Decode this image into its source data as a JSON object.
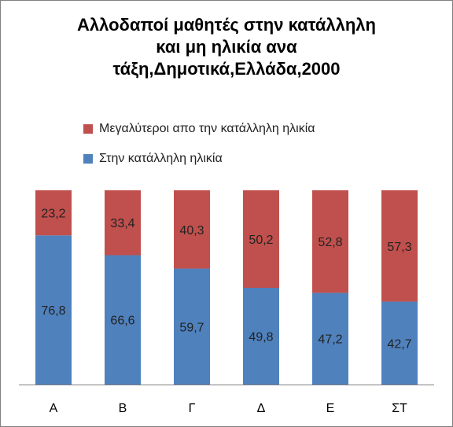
{
  "chart_data": {
    "type": "bar",
    "stacked": true,
    "title_lines": [
      "Αλλοδαποί  μαθητές στην κατάλληλη",
      "και μη ηλικία ανα",
      "τάξη,Δημοτικά,Ελλάδα,2000"
    ],
    "categories": [
      "Α",
      "Β",
      "Γ",
      "Δ",
      "Ε",
      "ΣΤ"
    ],
    "series": [
      {
        "name": "Στην κατάλληλη ηλικία",
        "color": "#4F81BD",
        "values": [
          76.8,
          66.6,
          59.7,
          49.8,
          47.2,
          42.7
        ],
        "labels": [
          "76,8",
          "66,6",
          "59,7",
          "49,8",
          "47,2",
          "42,7"
        ]
      },
      {
        "name": "Μεγαλύτεροι απο την κατάλληλη ηλικία",
        "color": "#C0504D",
        "values": [
          23.2,
          33.4,
          40.3,
          50.2,
          52.8,
          57.3
        ],
        "labels": [
          "23,2",
          "33,4",
          "40,3",
          "50,2",
          "52,8",
          "57,3"
        ]
      }
    ],
    "legend_order": [
      1,
      0
    ],
    "legend_position": "top",
    "ylim": [
      0,
      100
    ],
    "grid": false
  }
}
